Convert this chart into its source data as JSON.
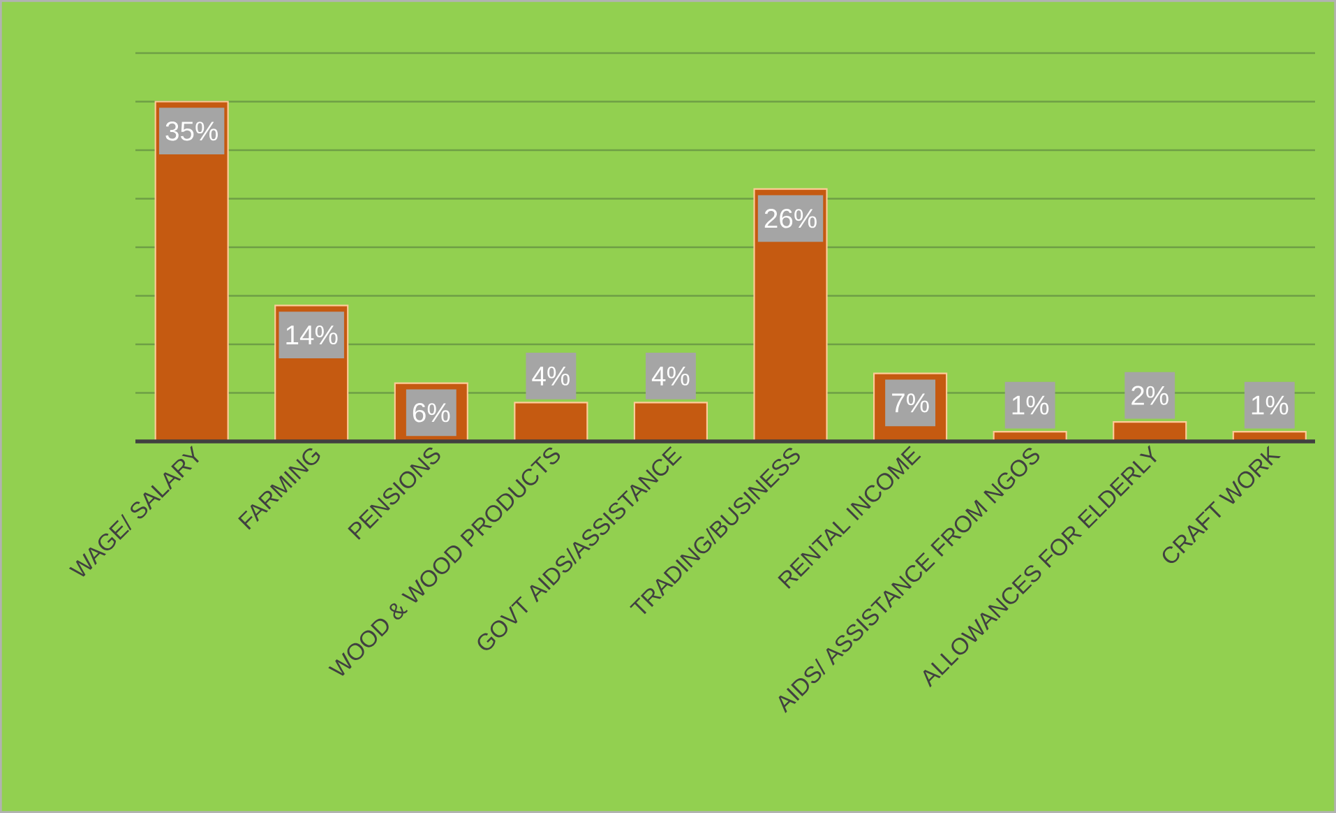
{
  "chart_data": {
    "type": "bar",
    "categories": [
      "WAGE/ SALARY",
      "FARMING",
      "PENSIONS",
      "WOOD & WOOD PRODUCTS",
      "GOVT AIDS/ASSISTANCE",
      "TRADING/BUSINESS",
      "RENTAL INCOME",
      "AIDS/ ASSISTANCE FROM NGOS",
      "ALLOWANCES FOR ELDERLY",
      "CRAFT WORK"
    ],
    "values": [
      35,
      14,
      6,
      4,
      4,
      26,
      7,
      1,
      2,
      1
    ],
    "value_labels": [
      "35%",
      "14%",
      "6%",
      "4%",
      "4%",
      "26%",
      "7%",
      "1%",
      "2%",
      "1%"
    ],
    "color": "#c55a11",
    "ylim": [
      0,
      40
    ],
    "yticks": [
      {
        "value": 5,
        "label": null
      },
      {
        "value": 10,
        "label": null
      },
      {
        "value": 15,
        "label": null
      },
      {
        "value": 20,
        "label": null
      },
      {
        "value": 25,
        "label": null
      },
      {
        "value": 30,
        "label": null
      },
      {
        "value": 35,
        "label": null
      },
      {
        "value": 40,
        "label": null
      }
    ],
    "grid": "y",
    "tick_labels": "x"
  }
}
